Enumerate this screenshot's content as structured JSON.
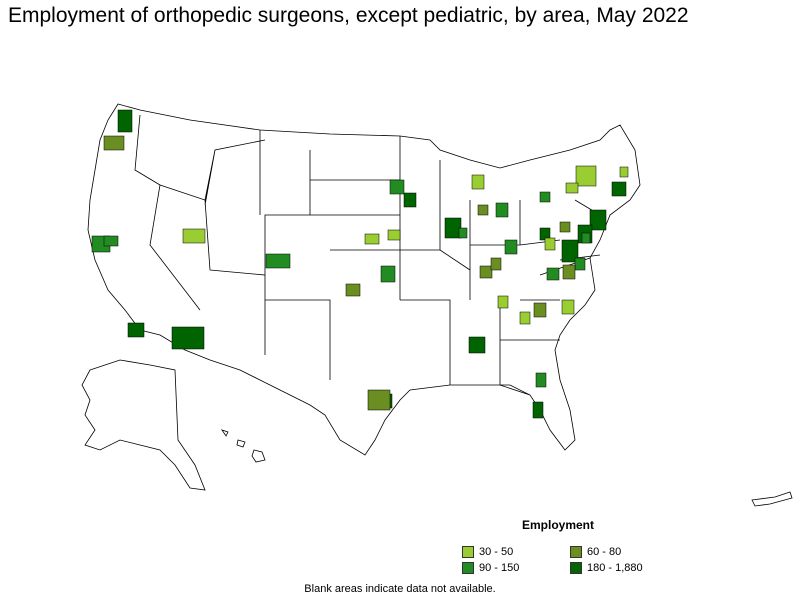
{
  "title": "Employment of orthopedic surgeons, except pediatric, by area, May 2022",
  "legend": {
    "title": "Employment",
    "items": [
      {
        "label": "30 - 50",
        "color": "#9ACD32"
      },
      {
        "label": "60 - 80",
        "color": "#6B8E23"
      },
      {
        "label": "90 - 150",
        "color": "#228B22"
      },
      {
        "label": "180 - 1,880",
        "color": "#006400"
      }
    ]
  },
  "note": "Blank areas indicate data not available."
}
